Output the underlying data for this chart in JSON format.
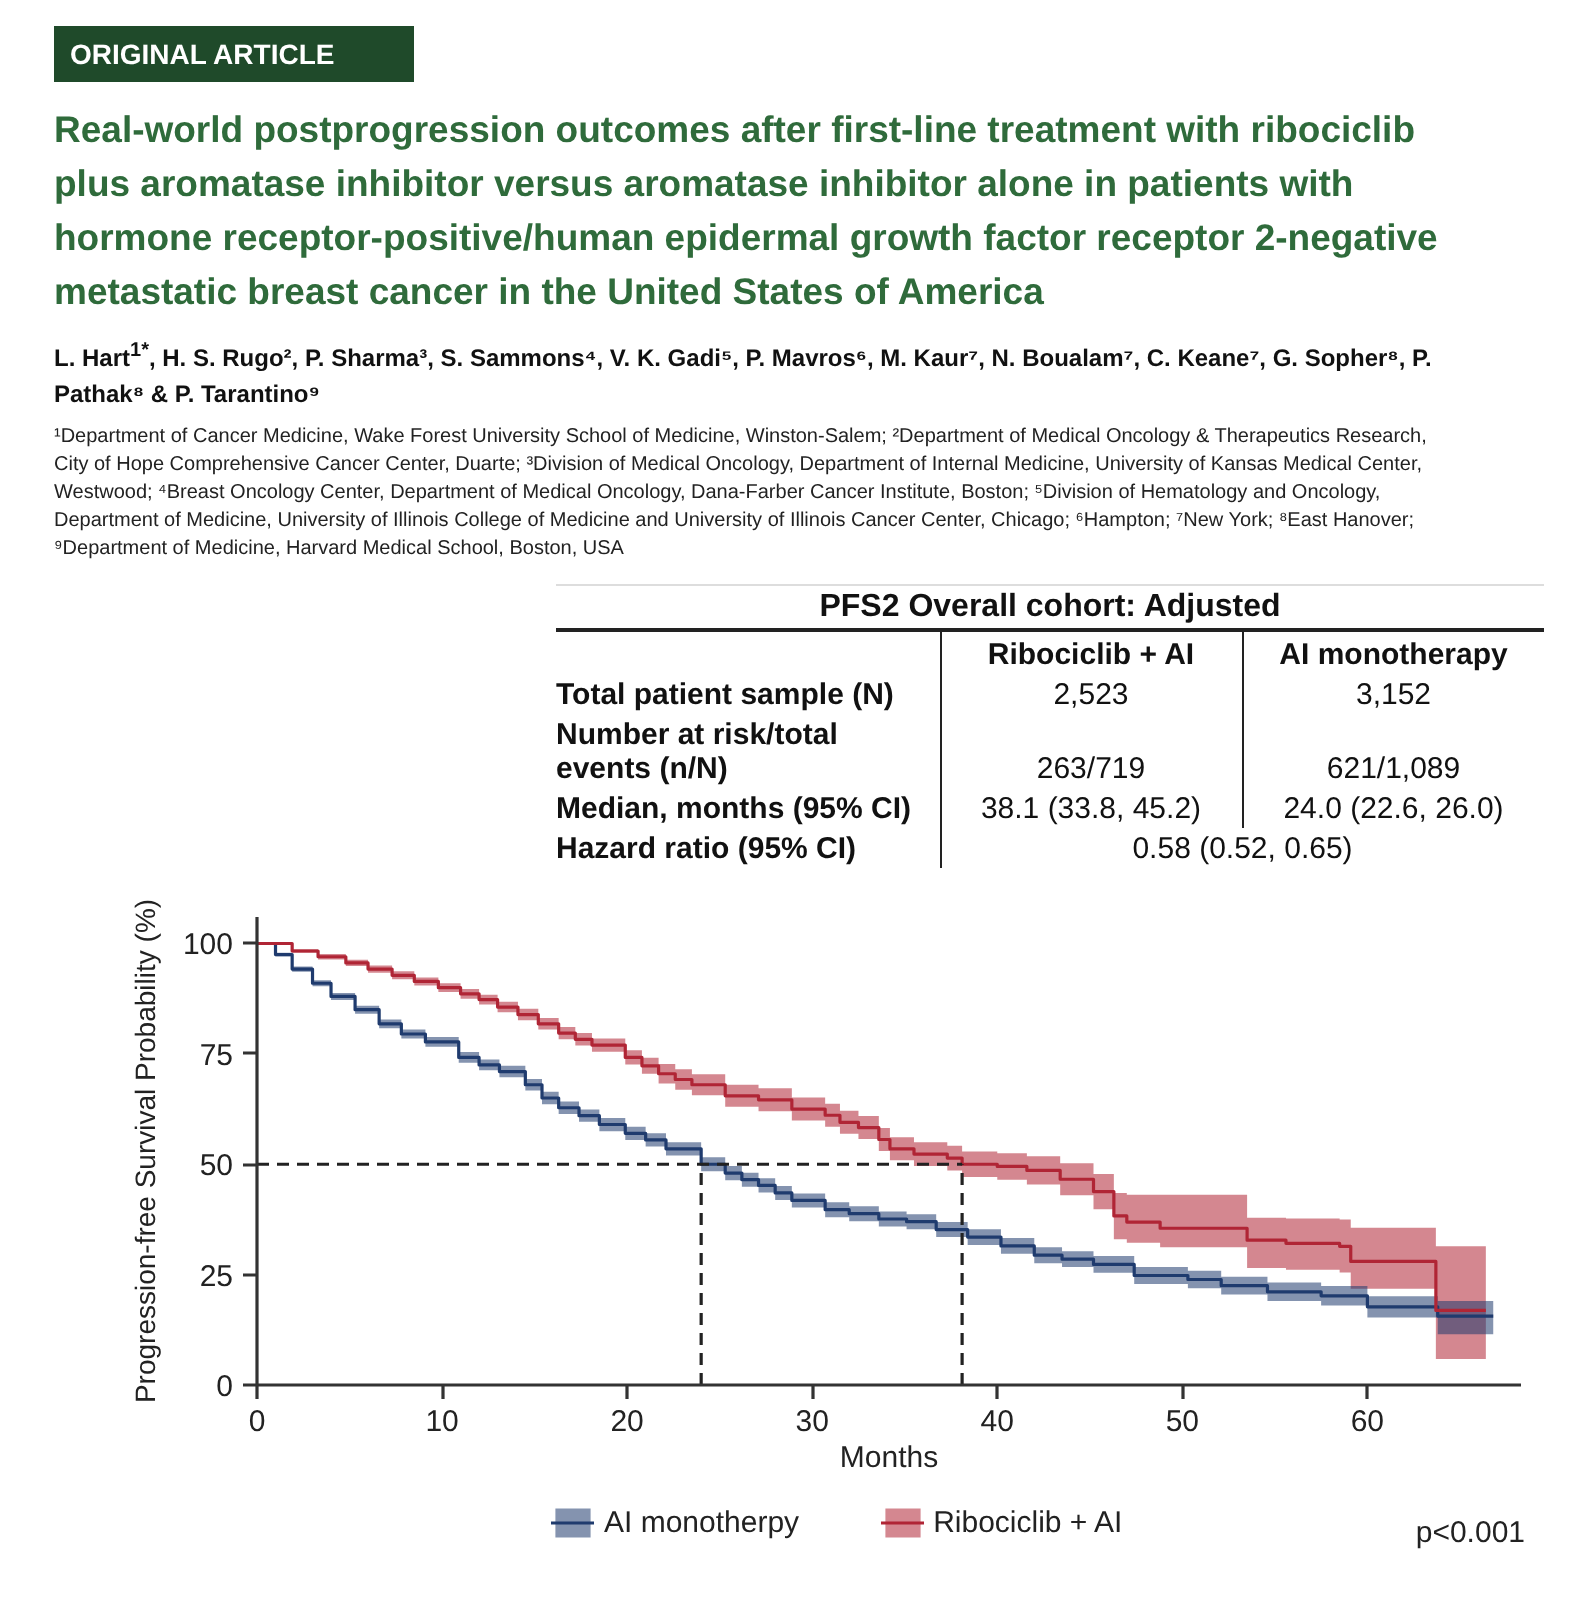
{
  "chart_data": [
    {
      "type": "other",
      "title": "Real-world postprogression outcomes after first-line treatment with ribociclib plus aromatase inhibitor versus aromatase inhibitor alone in patients with hormone receptor-positive/human epidermal growth factor receptor 2-negative metastatic breast cancer in the United States of America",
      "subtitle": "L. Hart$^{1*}$, H. S. Rugo², P. Sharma³, S. Sammons⁴, V. K. Gadi⁵, P. Mavros⁶, M. Kaur⁷, N. Boualam⁷, C. Keane⁷, G. Sopher⁸, P. Pathak⁸ & P. Tarantino⁹",
      "annotations": [
        "ORIGINAL ARTICLE",
        "¹Department of Cancer Medicine, Wake Forest University School of Medicine, Winston-Salem; ²Department of Medical Oncology & Therapeutics Research, City of Hope Comprehensive Cancer Center, Duarte; ³Division of Medical Oncology, Department of Internal Medicine, University of Kansas Medical Center, Westwood; ⁴Breast Oncology Center, Department of Medical Oncology, Dana-Farber Cancer Institute, Boston; ⁵Division of Hematology and Oncology, Department of Medicine, University of Illinois College of Medicine and University of Illinois Cancer Center, Chicago; ⁶Hampton; ⁷New York; ⁸East Hanover; ⁹Department of Medicine, Harvard Medical School, Boston, USA"
      ]
    },
    {
      "type": "other",
      "title": "PFS2 Overall cohort: Adjusted",
      "categories": [
        "Ribociclib + AI",
        "AI monotherapy"
      ],
      "y_categories": [
        "Total patient sample (N)",
        "Number at risk/total events (n/N)",
        "Median, months (95% CI)",
        "Hazard ratio (95% CI)"
      ],
      "cell_labels": [
        [
          "2,523",
          "3,152"
        ],
        [
          "263/719",
          "621/1,089"
        ],
        [
          "38.1 (33.8, 45.2)",
          "24.0 (22.6, 26.0)"
        ],
        [
          "0.58 (0.52, 0.65)",
          null
        ]
      ]
    },
    {
      "type": "step",
      "xlabel": "Months",
      "ylabel": "Progression-free Survival Probability (%)",
      "xlim": [
        0,
        68.3
      ],
      "ylim": [
        0,
        106
      ],
      "xticks": [
        0,
        10,
        20,
        30,
        40,
        50,
        60
      ],
      "yticks": [
        0,
        25,
        50,
        75,
        100
      ],
      "legend": "bottom",
      "series": [
        {
          "name": "AI monotherpy",
          "color": "#1f3b6e",
          "x": [
            0,
            1.0,
            1.9,
            3.0,
            4.0,
            5.3,
            6.6,
            7.8,
            9.1,
            10.9,
            12.0,
            13.1,
            14.5,
            15.4,
            16.3,
            17.4,
            18.5,
            19.9,
            21.0,
            22.1,
            24.0,
            25.3,
            26.2,
            27.1,
            28.0,
            28.9,
            30.7,
            32.0,
            33.6,
            35.1,
            36.7,
            38.4,
            40.2,
            42.0,
            43.5,
            45.2,
            47.4,
            50.3,
            52.1,
            54.6,
            57.5,
            60.0,
            63.8,
            66.8
          ],
          "values": [
            100,
            97.5,
            94.2,
            91,
            88,
            85,
            81.8,
            79.5,
            77.7,
            74.2,
            72.5,
            71,
            68,
            65,
            62.8,
            61,
            59,
            57,
            55.5,
            53.5,
            50,
            48,
            46.5,
            45.2,
            43.5,
            41.8,
            39.7,
            38.8,
            37.6,
            37.0,
            35.2,
            33.5,
            31.5,
            29.4,
            28.5,
            27.3,
            24.8,
            23.9,
            22.5,
            21.1,
            20.2,
            17.7,
            15.6,
            15.6
          ],
          "lower": [
            100,
            97.1,
            93.6,
            90.3,
            87.2,
            84.1,
            80.8,
            78.5,
            76.6,
            73.0,
            71.3,
            69.7,
            66.7,
            63.6,
            61.4,
            59.6,
            57.5,
            55.5,
            54.0,
            52.0,
            48.4,
            46.4,
            44.9,
            43.6,
            41.9,
            40.2,
            38.0,
            37.1,
            35.9,
            35.3,
            33.5,
            31.7,
            29.7,
            27.6,
            26.7,
            25.4,
            22.9,
            21.9,
            20.5,
            19.0,
            18.0,
            15.3,
            11.5,
            11.5
          ],
          "upper": [
            100,
            97.9,
            94.8,
            91.7,
            88.8,
            85.9,
            82.8,
            80.5,
            78.8,
            75.4,
            73.7,
            72.3,
            69.3,
            66.4,
            64.2,
            62.4,
            60.5,
            58.5,
            57.0,
            55.0,
            51.6,
            49.6,
            48.1,
            46.8,
            45.1,
            43.4,
            41.4,
            40.5,
            39.3,
            38.7,
            36.9,
            35.3,
            33.3,
            31.2,
            30.3,
            29.2,
            26.7,
            25.9,
            24.5,
            23.2,
            22.4,
            20.1,
            19.0,
            19.0
          ]
        },
        {
          "name": "Ribociclib + AI",
          "color": "#b02535",
          "x": [
            0,
            1.9,
            3.3,
            4.8,
            6.0,
            7.3,
            8.5,
            9.8,
            11.0,
            12.0,
            13.0,
            14.1,
            15.2,
            16.3,
            17.2,
            18.1,
            19.9,
            20.8,
            21.7,
            22.6,
            23.5,
            25.3,
            27.1,
            28.9,
            30.7,
            31.5,
            32.5,
            33.6,
            34.2,
            35.5,
            37.3,
            38.1,
            40.0,
            41.6,
            43.4,
            45.2,
            46.3,
            47.0,
            48.8,
            53.5,
            55.6,
            58.5,
            59.1,
            63.7,
            66.4
          ],
          "values": [
            100,
            98.3,
            97,
            95.6,
            94.2,
            92.8,
            91.4,
            90,
            88.6,
            87.3,
            85.6,
            83.9,
            81.8,
            79.7,
            78.3,
            77,
            74.2,
            72.3,
            70.5,
            69.2,
            68,
            65.5,
            64.6,
            62.5,
            61.1,
            59.5,
            58.3,
            55.6,
            53.5,
            52.3,
            51.4,
            50.0,
            49.5,
            48.6,
            46.6,
            43.8,
            38.3,
            36.9,
            35.5,
            32.8,
            32.1,
            31.4,
            28,
            16.9,
            16.9
          ],
          "lower": [
            100,
            97.9,
            96.4,
            94.9,
            93.4,
            91.9,
            90.5,
            89.0,
            87.5,
            86.2,
            84.4,
            82.6,
            80.5,
            78.3,
            76.9,
            75.5,
            72.6,
            70.5,
            68.3,
            66.9,
            65.6,
            63.0,
            62.0,
            59.9,
            58.5,
            56.9,
            55.7,
            53.0,
            50.9,
            49.6,
            48.6,
            47.1,
            46.5,
            45.4,
            43.0,
            39.8,
            33.0,
            32.2,
            31.2,
            26.5,
            26.1,
            25.5,
            21.8,
            5.9,
            5.9
          ],
          "upper": [
            100,
            98.7,
            97.6,
            96.3,
            95.0,
            93.7,
            92.3,
            91.0,
            89.7,
            88.4,
            86.8,
            85.2,
            83.1,
            81.1,
            79.7,
            78.5,
            75.8,
            74.1,
            72.7,
            71.5,
            70.4,
            68.0,
            67.2,
            65.1,
            63.7,
            62.1,
            60.9,
            58.2,
            56.1,
            55.0,
            54.2,
            52.9,
            52.5,
            51.8,
            50.2,
            47.8,
            43.5,
            43.1,
            43.1,
            37.9,
            37.7,
            37.5,
            35.6,
            31.4,
            31.4
          ]
        }
      ],
      "ref_lines": [
        {
          "axis": "y",
          "value": 50,
          "line_style": "dashed",
          "color": "#222222"
        },
        {
          "axis": "x",
          "value": 24.0,
          "line_style": "dashed",
          "color": "#222222"
        },
        {
          "axis": "x",
          "value": 38.1,
          "line_style": "dashed",
          "color": "#222222"
        }
      ],
      "annotations": [
        "p<0.001"
      ]
    }
  ]
}
